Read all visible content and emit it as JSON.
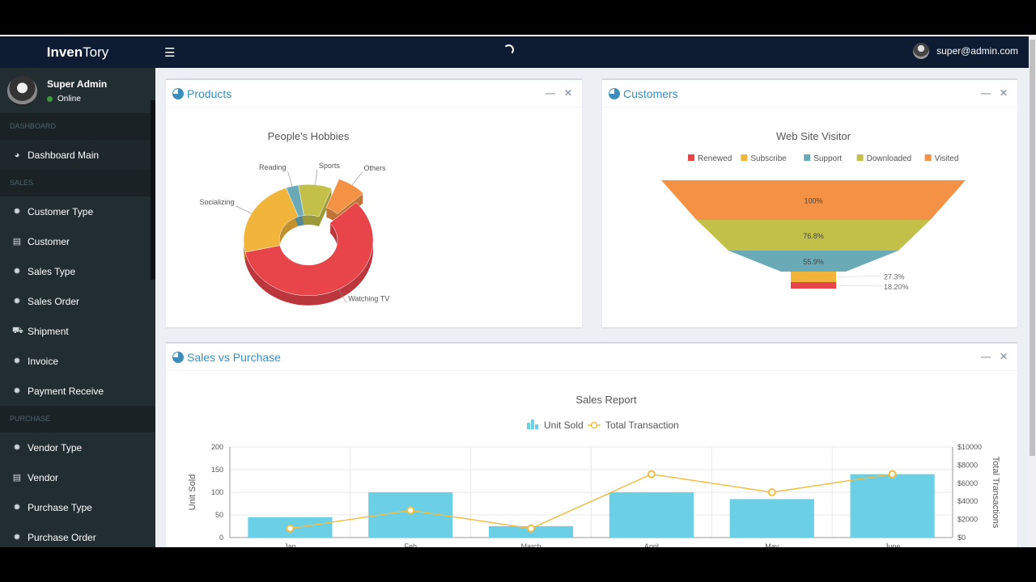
{
  "app": {
    "logo_bold": "Inven",
    "logo_rest": "Tory"
  },
  "topbar": {
    "user_email": "super@admin.com"
  },
  "sidebar": {
    "user_name": "Super Admin",
    "user_status": "Online",
    "sections": [
      {
        "header": "DASHBOARD",
        "items": [
          {
            "label": "Dashboard Main",
            "icon": "pie-chart-icon"
          }
        ]
      },
      {
        "header": "SALES",
        "items": [
          {
            "label": "Customer Type",
            "icon": "gear-icon"
          },
          {
            "label": "Customer",
            "icon": "document-icon"
          },
          {
            "label": "Sales Type",
            "icon": "gear-icon"
          },
          {
            "label": "Sales Order",
            "icon": "gear-icon"
          },
          {
            "label": "Shipment",
            "icon": "truck-icon"
          },
          {
            "label": "Invoice",
            "icon": "gear-icon"
          },
          {
            "label": "Payment Receive",
            "icon": "gear-icon"
          }
        ]
      },
      {
        "header": "PURCHASE",
        "items": [
          {
            "label": "Vendor Type",
            "icon": "gear-icon"
          },
          {
            "label": "Vendor",
            "icon": "document-icon"
          },
          {
            "label": "Purchase Type",
            "icon": "gear-icon"
          },
          {
            "label": "Purchase Order",
            "icon": "gear-icon"
          }
        ]
      }
    ]
  },
  "boxes": {
    "products": {
      "title": "Products"
    },
    "customers": {
      "title": "Customers"
    },
    "sales": {
      "title": "Sales vs Purchase"
    }
  },
  "chart_data": [
    {
      "type": "pie",
      "title": "People's Hobbies",
      "categories": [
        "Watching TV",
        "Socializing",
        "Reading",
        "Sports",
        "Others"
      ],
      "values": [
        56,
        22,
        3,
        8,
        7
      ],
      "colors": [
        "#e8454b",
        "#f2b53b",
        "#6aaab7",
        "#c3c04a",
        "#f39145"
      ]
    },
    {
      "type": "funnel",
      "title": "Web Site Visitor",
      "legend": [
        "Renewed",
        "Subscribe",
        "Support",
        "Downloaded",
        "Visited"
      ],
      "legend_colors": [
        "#e8454b",
        "#f2b53b",
        "#6aaab7",
        "#c3c04a",
        "#f39145"
      ],
      "stages": [
        {
          "name": "Visited",
          "label": "100%",
          "value": 100,
          "color": "#f39145"
        },
        {
          "name": "Downloaded",
          "label": "76.8%",
          "value": 76.8,
          "color": "#c3c04a"
        },
        {
          "name": "Support",
          "label": "55.9%",
          "value": 55.9,
          "color": "#6aaab7"
        },
        {
          "name": "Subscribe",
          "label": "27.3%",
          "value": 27.3,
          "color": "#f2b53b"
        },
        {
          "name": "Renewed",
          "label": "18.20%",
          "value": 18.2,
          "color": "#e8454b"
        }
      ]
    },
    {
      "type": "bar",
      "title": "Sales Report",
      "categories": [
        "Jan",
        "Feb",
        "March",
        "April",
        "May",
        "June"
      ],
      "series": [
        {
          "name": "Unit Sold",
          "type": "bar",
          "values": [
            45,
            100,
            25,
            100,
            85,
            140
          ],
          "color": "#6bd0e5"
        },
        {
          "name": "Total Transaction",
          "type": "line",
          "values": [
            1000,
            3000,
            1000,
            7000,
            5000,
            7000
          ],
          "color": "#f0bd45"
        }
      ],
      "ylabel": "Unit Sold",
      "y2label": "Total Transactions",
      "ylim": [
        0,
        200
      ],
      "y2lim": [
        0,
        10000
      ],
      "yticks": [
        "0",
        "50",
        "100",
        "150",
        "200"
      ],
      "y2ticks": [
        "$0",
        "$2000",
        "$4000",
        "$6000",
        "$8000",
        "$10000"
      ]
    }
  ]
}
